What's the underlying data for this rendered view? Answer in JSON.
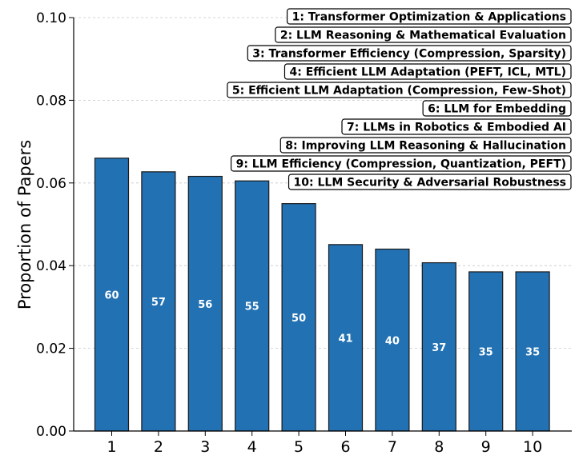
{
  "chart_data": {
    "type": "bar",
    "title": "",
    "xlabel": "",
    "ylabel": "Proportion of Papers",
    "ylim": [
      0,
      0.1
    ],
    "yticks": [
      "0.00",
      "0.02",
      "0.04",
      "0.06",
      "0.08",
      "0.10"
    ],
    "grid": "horizontal dashed",
    "legend_position": "top-right",
    "bar_color": "#2271b3",
    "categories": [
      "1",
      "2",
      "3",
      "4",
      "5",
      "6",
      "7",
      "8",
      "9",
      "10"
    ],
    "values": [
      0.066,
      0.0627,
      0.0616,
      0.0605,
      0.055,
      0.0451,
      0.044,
      0.0407,
      0.0385,
      0.0385
    ],
    "counts": [
      "60",
      "57",
      "56",
      "55",
      "50",
      "41",
      "40",
      "37",
      "35",
      "35"
    ],
    "topics": [
      "1: Transformer Optimization & Applications",
      "2: LLM Reasoning & Mathematical Evaluation",
      "3: Transformer Efficiency (Compression, Sparsity)",
      "4: Efficient LLM Adaptation (PEFT, ICL, MTL)",
      "5: Efficient LLM Adaptation (Compression, Few-Shot)",
      "6: LLM for Embedding",
      "7: LLMs in Robotics & Embodied AI",
      "8: Improving LLM Reasoning & Hallucination",
      "9: LLM Efficiency (Compression, Quantization, PEFT)",
      "10: LLM Security & Adversarial Robustness"
    ]
  }
}
